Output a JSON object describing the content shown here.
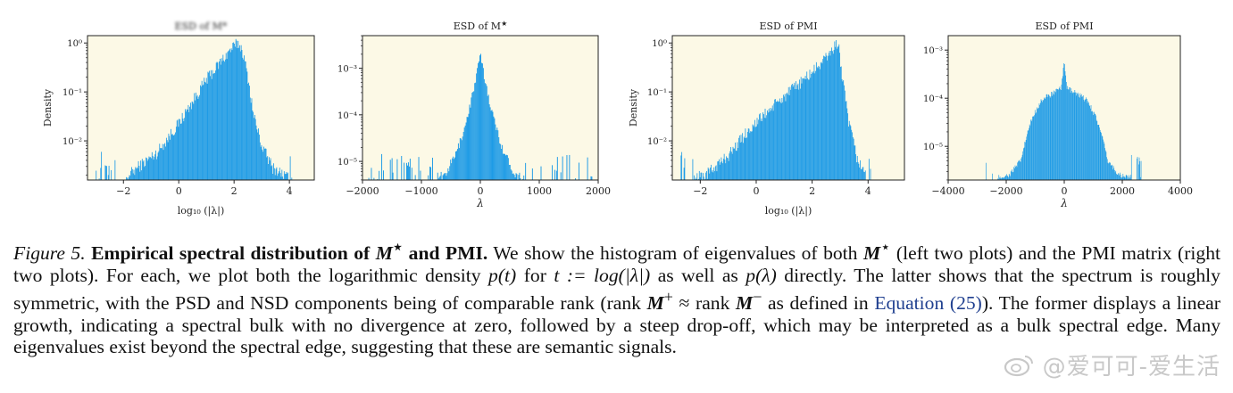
{
  "colors": {
    "plot_bg": "#fcf9e6",
    "bars": "#1e9be6",
    "axis": "#222222",
    "link": "#1f3f8f"
  },
  "figure": {
    "panels": [
      {
        "title": "ESD of M*"
      },
      {
        "title": "ESD of M",
        "title_sup": "★"
      },
      {
        "title": "ESD of PMI"
      },
      {
        "title": "ESD of PMI"
      }
    ]
  },
  "chart_data": [
    {
      "type": "histogram",
      "title": "ESD of M*",
      "xlabel": "log₁₀ (|λ|)",
      "ylabel": "Density",
      "yscale": "log",
      "xlim": [
        -3.3,
        4.9
      ],
      "ylim_exp": [
        -2.8,
        0.15
      ],
      "xticks": [
        -2,
        0,
        2,
        4
      ],
      "xtick_labels": [
        "−2",
        "0",
        "2",
        "4"
      ],
      "yticks_exp": [
        0,
        -1,
        -2
      ],
      "ytick_labels": [
        "10⁰",
        "10⁻¹",
        "10⁻²"
      ],
      "profile": [
        [
          -3.0,
          -2.8
        ],
        [
          -2.0,
          -2.8
        ],
        [
          -1.5,
          -2.55
        ],
        [
          -0.8,
          -2.25
        ],
        [
          0.0,
          -1.65
        ],
        [
          0.5,
          -1.2
        ],
        [
          1.0,
          -0.75
        ],
        [
          1.5,
          -0.4
        ],
        [
          1.9,
          -0.12
        ],
        [
          2.15,
          0.0
        ],
        [
          2.3,
          -0.15
        ],
        [
          2.5,
          -0.7
        ],
        [
          2.7,
          -1.45
        ],
        [
          3.0,
          -2.1
        ],
        [
          3.4,
          -2.55
        ],
        [
          4.1,
          -2.8
        ]
      ],
      "spread": [
        -3.0,
        4.1
      ],
      "noise": 0.25,
      "spikes": 0.3
    },
    {
      "type": "histogram",
      "title": "ESD of M★",
      "xlabel": "λ",
      "ylabel": "",
      "yscale": "log",
      "xlim": [
        -2000,
        2000
      ],
      "ylim_exp": [
        -5.4,
        -2.3
      ],
      "xticks": [
        -2000,
        -1000,
        0,
        1000,
        2000
      ],
      "xtick_labels": [
        "−2000",
        "−1000",
        "0",
        "1000",
        "2000"
      ],
      "yticks_exp": [
        -3,
        -4,
        -5
      ],
      "ytick_labels": [
        "10⁻³",
        "10⁻⁴",
        "10⁻⁵"
      ],
      "profile": [
        [
          -1900,
          -5.4
        ],
        [
          -900,
          -5.4
        ],
        [
          -600,
          -5.3
        ],
        [
          -400,
          -4.8
        ],
        [
          -250,
          -4.2
        ],
        [
          -120,
          -3.5
        ],
        [
          -40,
          -3.0
        ],
        [
          0,
          -2.7
        ],
        [
          40,
          -3.0
        ],
        [
          120,
          -3.5
        ],
        [
          250,
          -4.2
        ],
        [
          400,
          -4.8
        ],
        [
          600,
          -5.3
        ],
        [
          900,
          -5.4
        ],
        [
          1900,
          -5.4
        ]
      ],
      "spread": [
        -1900,
        1900
      ],
      "noise": 0.2,
      "spikes": 0.25
    },
    {
      "type": "histogram",
      "title": "ESD of PMI",
      "xlabel": "log₁₀ (|λ|)",
      "ylabel": "Density",
      "yscale": "log",
      "xlim": [
        -3.0,
        5.3
      ],
      "ylim_exp": [
        -2.8,
        0.15
      ],
      "xticks": [
        -2,
        0,
        2,
        4
      ],
      "xtick_labels": [
        "−2",
        "0",
        "2",
        "4"
      ],
      "yticks_exp": [
        0,
        -1,
        -2
      ],
      "ytick_labels": [
        "10⁰",
        "10⁻¹",
        "10⁻²"
      ],
      "profile": [
        [
          -2.7,
          -2.8
        ],
        [
          -1.8,
          -2.7
        ],
        [
          -1.0,
          -2.3
        ],
        [
          -0.3,
          -1.8
        ],
        [
          0.5,
          -1.35
        ],
        [
          1.2,
          -1.0
        ],
        [
          2.0,
          -0.6
        ],
        [
          2.5,
          -0.3
        ],
        [
          2.8,
          -0.08
        ],
        [
          2.95,
          0.0
        ],
        [
          3.05,
          -0.6
        ],
        [
          3.3,
          -1.6
        ],
        [
          3.6,
          -2.35
        ],
        [
          4.0,
          -2.8
        ]
      ],
      "spread": [
        -2.7,
        4.1
      ],
      "noise": 0.25,
      "spikes": 0.3
    },
    {
      "type": "histogram",
      "title": "ESD of PMI",
      "xlabel": "λ",
      "ylabel": "",
      "yscale": "log",
      "xlim": [
        -4000,
        4000
      ],
      "ylim_exp": [
        -5.7,
        -2.7
      ],
      "xticks": [
        -4000,
        -2000,
        0,
        2000,
        4000
      ],
      "xtick_labels": [
        "−4000",
        "−2000",
        "0",
        "2000",
        "4000"
      ],
      "yticks_exp": [
        -3,
        -4,
        -5
      ],
      "ytick_labels": [
        "10⁻³",
        "10⁻⁴",
        "10⁻⁵"
      ],
      "profile": [
        [
          -2700,
          -5.7
        ],
        [
          -1900,
          -5.6
        ],
        [
          -1500,
          -5.3
        ],
        [
          -1300,
          -4.8
        ],
        [
          -1100,
          -4.4
        ],
        [
          -800,
          -4.05
        ],
        [
          -400,
          -3.9
        ],
        [
          -100,
          -3.8
        ],
        [
          0,
          -3.2
        ],
        [
          100,
          -3.8
        ],
        [
          400,
          -3.9
        ],
        [
          800,
          -4.05
        ],
        [
          1100,
          -4.4
        ],
        [
          1300,
          -4.8
        ],
        [
          1500,
          -5.3
        ],
        [
          1900,
          -5.6
        ],
        [
          2700,
          -5.7
        ]
      ],
      "spread": [
        -2700,
        2700
      ],
      "noise": 0.12,
      "spikes": 0.2
    }
  ],
  "caption": {
    "fig_label": "Figure 5.",
    "bold_a": "Empirical spectral distribution of",
    "bold_m": "M",
    "bold_star": "⋆",
    "bold_b": "and PMI.",
    "t1": "We show the histogram of eigenvalues of both",
    "m1": "M",
    "star1": "⋆",
    "t2": "(left two plots) and the PMI matrix (right two plots). For each, we plot both the logarithmic density",
    "m2": "p(t)",
    "t3": "for",
    "m3": "t := log(|λ|)",
    "t4": "as well as",
    "m4": "p(λ)",
    "t5": "directly. The latter shows that the spectrum is roughly symmetric, with the PSD and NSD components being of comparable rank (",
    "rank1": "rank",
    "m5": "M",
    "sup5": "+",
    "approx": "≈",
    "rank2": "rank",
    "m6": "M",
    "sup6": "−",
    "t6": "as defined in",
    "ref": "Equation (25)",
    "t7": "). The former displays a linear growth, indicating a spectral bulk with no divergence at zero, followed by a steep drop-off, which may be interpreted as a bulk spectral edge. Many eigenvalues exist beyond the spectral edge, suggesting that these are semantic signals."
  },
  "watermark": {
    "icon": "weibo-icon",
    "text": "@爱可可-爱生活"
  }
}
